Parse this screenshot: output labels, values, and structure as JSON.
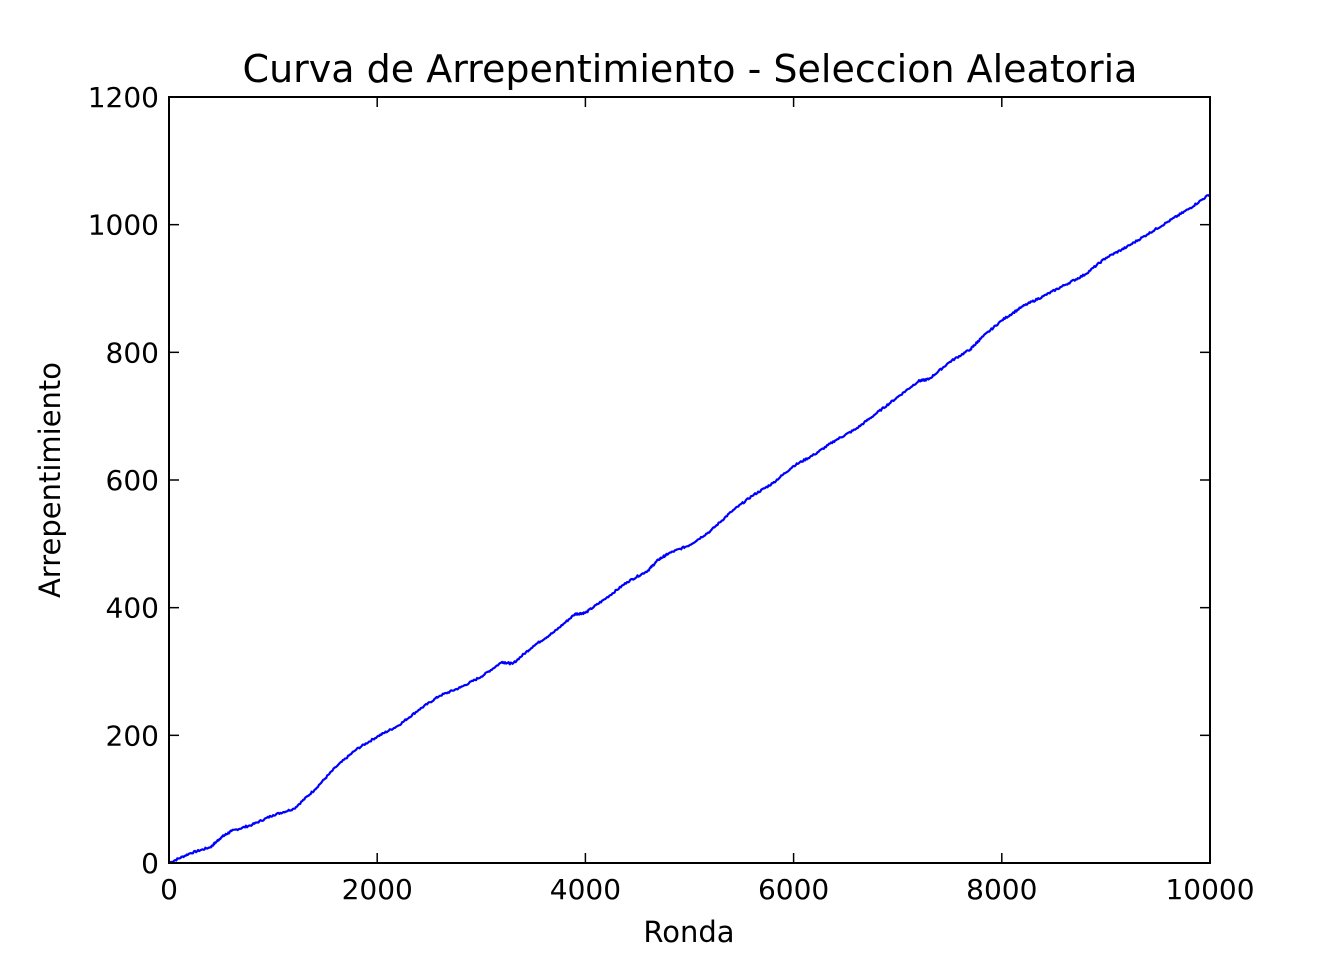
{
  "chart_data": {
    "type": "line",
    "title": "Curva de Arrepentimiento - Seleccion Aleatoria",
    "xlabel": "Ronda",
    "ylabel": "Arrepentimiento",
    "xlim": [
      0,
      10000
    ],
    "ylim": [
      0,
      1200
    ],
    "x_ticks": [
      "0",
      "2000",
      "4000",
      "6000",
      "8000",
      "10000"
    ],
    "y_ticks": [
      "0",
      "200",
      "400",
      "600",
      "800",
      "1000",
      "1200"
    ],
    "grid": false,
    "legend": "none",
    "series_color": "#0000ff",
    "series": [
      {
        "x": [
          0,
          200,
          400,
          500,
          600,
          800,
          1000,
          1200,
          1400,
          1600,
          1800,
          2000,
          2200,
          2400,
          2600,
          2800,
          3000,
          3200,
          3300,
          3500,
          3700,
          3900,
          4000,
          4200,
          4400,
          4600,
          4700,
          4800,
          5000,
          5200,
          5400,
          5600,
          5800,
          6000,
          6200,
          6400,
          6600,
          6800,
          7000,
          7200,
          7300,
          7500,
          7700,
          7800,
          8000,
          8200,
          8400,
          8600,
          8800,
          9000,
          9200,
          9400,
          9600,
          9800,
          10000
        ],
        "y": [
          0,
          15,
          25,
          40,
          50,
          60,
          75,
          85,
          115,
          150,
          178,
          198,
          215,
          240,
          262,
          275,
          292,
          315,
          312,
          340,
          362,
          390,
          392,
          415,
          440,
          458,
          475,
          485,
          498,
          520,
          550,
          575,
          595,
          622,
          640,
          662,
          680,
          705,
          730,
          755,
          758,
          785,
          805,
          822,
          850,
          872,
          888,
          905,
          922,
          948,
          965,
          985,
          1005,
          1025,
          1048
        ]
      }
    ]
  }
}
